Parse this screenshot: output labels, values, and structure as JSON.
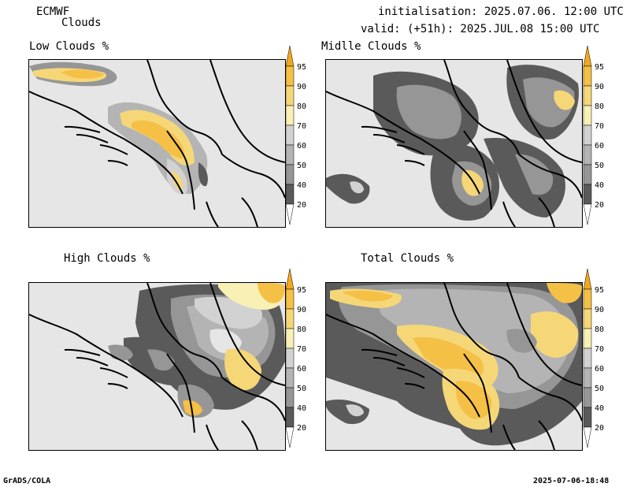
{
  "header": {
    "source": "ECMWF",
    "variable": "Clouds",
    "initialisation": "initialisation: 2025.07.06. 12:00 UTC",
    "valid": "valid: (+51h): 2025.JUL.08 15:00 UTC"
  },
  "panels": [
    {
      "id": "low",
      "title": "Low Clouds %"
    },
    {
      "id": "middle",
      "title": "Midlle Clouds %"
    },
    {
      "id": "high",
      "title": "High Clouds %"
    },
    {
      "id": "total",
      "title": "Total Clouds %"
    }
  ],
  "colorbar": {
    "levels": [
      "95",
      "90",
      "80",
      "70",
      "60",
      "50",
      "40",
      "20"
    ],
    "colors": {
      "over95": "#f2a81e",
      "c90_95": "#f5c046",
      "c80_90": "#f5d778",
      "c70_80": "#f8f0b4",
      "c60_70": "#d2d2d2",
      "c50_60": "#b4b4b4",
      "c40_50": "#969696",
      "c20_40": "#5a5a5a",
      "under20": "#ffffff"
    }
  },
  "footer": {
    "left": "GrADS/COLA",
    "right": "2025-07-06-18:48"
  }
}
